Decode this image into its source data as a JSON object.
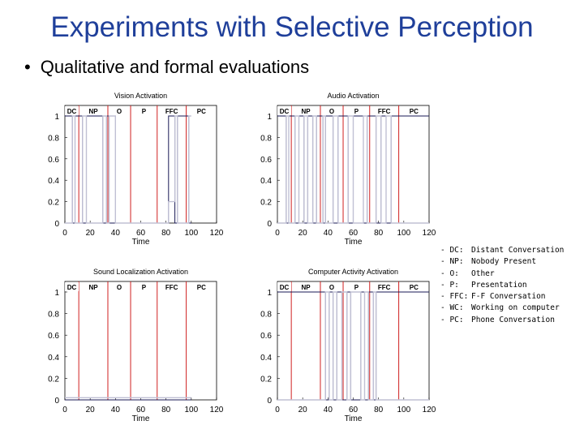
{
  "slide": {
    "title": "Experiments with Selective Perception",
    "bullet": "Qualitative and formal evaluations"
  },
  "legend": [
    {
      "key": "DC:",
      "value": "Distant Conversation"
    },
    {
      "key": "NP:",
      "value": "Nobody Present"
    },
    {
      "key": "O:",
      "value": "Other"
    },
    {
      "key": "P:",
      "value": "Presentation"
    },
    {
      "key": "FFC:",
      "value": "F-F Conversation"
    },
    {
      "key": "WC:",
      "value": "Working on computer"
    },
    {
      "key": "PC:",
      "value": "Phone Conversation"
    }
  ],
  "chart_data": [
    {
      "type": "line",
      "title": "Vision Activation",
      "xlabel": "Time",
      "ylabel": "",
      "xlim": [
        0,
        120
      ],
      "ylim": [
        0,
        1
      ],
      "xticks": [
        0,
        20,
        40,
        60,
        80,
        100,
        120
      ],
      "yticks": [
        0,
        0.2,
        0.4,
        0.6,
        0.8,
        1
      ],
      "segments": [
        {
          "label": "DC",
          "start": 0,
          "end": 11
        },
        {
          "label": "NP",
          "start": 11,
          "end": 34
        },
        {
          "label": "O",
          "start": 34,
          "end": 52
        },
        {
          "label": "P",
          "start": 52,
          "end": 73
        },
        {
          "label": "FFC",
          "start": 73,
          "end": 96
        },
        {
          "label": "PC",
          "start": 96,
          "end": 120
        }
      ],
      "boundaries": [
        11,
        34,
        52,
        73,
        96
      ],
      "series": [
        {
          "color": "#1a1a55",
          "points": [
            [
              0,
              1
            ],
            [
              6,
              1
            ],
            [
              6,
              0
            ],
            [
              8,
              0
            ],
            [
              8,
              1
            ],
            [
              14,
              1
            ],
            [
              14,
              0
            ],
            [
              17,
              0
            ],
            [
              17,
              1
            ],
            [
              30,
              1
            ],
            [
              30,
              0
            ],
            [
              33,
              0
            ],
            [
              33,
              1
            ],
            [
              35,
              1
            ],
            [
              35,
              0
            ],
            [
              82,
              0
            ],
            [
              82,
              1
            ],
            [
              87,
              1
            ],
            [
              87,
              0
            ],
            [
              89,
              0
            ],
            [
              89,
              1
            ],
            [
              98,
              1
            ],
            [
              98,
              0
            ],
            [
              100,
              0
            ]
          ]
        },
        {
          "color": "#c0c0d4",
          "points": [
            [
              0,
              0
            ],
            [
              6,
              0
            ],
            [
              6,
              1
            ],
            [
              8,
              1
            ],
            [
              8,
              0
            ],
            [
              14,
              0
            ],
            [
              14,
              1
            ],
            [
              17,
              1
            ],
            [
              17,
              0
            ],
            [
              30,
              0
            ],
            [
              30,
              1
            ],
            [
              33,
              1
            ],
            [
              33,
              0
            ],
            [
              35,
              0
            ],
            [
              35,
              1
            ],
            [
              40,
              1
            ],
            [
              40,
              0
            ],
            [
              82,
              0
            ],
            [
              82,
              0.2
            ],
            [
              87,
              0.2
            ],
            [
              87,
              1
            ],
            [
              89,
              1
            ],
            [
              89,
              0
            ],
            [
              98,
              0
            ],
            [
              98,
              1
            ],
            [
              100,
              1
            ]
          ]
        }
      ]
    },
    {
      "type": "line",
      "title": "Audio Activation",
      "xlabel": "Time",
      "ylabel": "",
      "xlim": [
        0,
        120
      ],
      "ylim": [
        0,
        1
      ],
      "xticks": [
        0,
        20,
        40,
        60,
        80,
        100,
        120
      ],
      "yticks": [
        0,
        0.2,
        0.4,
        0.6,
        0.8,
        1
      ],
      "segments": [
        {
          "label": "DC",
          "start": 0,
          "end": 11
        },
        {
          "label": "NP",
          "start": 11,
          "end": 34
        },
        {
          "label": "O",
          "start": 34,
          "end": 52
        },
        {
          "label": "P",
          "start": 52,
          "end": 73
        },
        {
          "label": "FFC",
          "start": 73,
          "end": 96
        },
        {
          "label": "PC",
          "start": 96,
          "end": 120
        }
      ],
      "boundaries": [
        11,
        34,
        52,
        73,
        96
      ],
      "series": [
        {
          "color": "#1a1a55",
          "points": [
            [
              0,
              1
            ],
            [
              7,
              1
            ],
            [
              7,
              0
            ],
            [
              9,
              0
            ],
            [
              9,
              1
            ],
            [
              14,
              1
            ],
            [
              14,
              0
            ],
            [
              17,
              0
            ],
            [
              17,
              1
            ],
            [
              21,
              1
            ],
            [
              21,
              0
            ],
            [
              24,
              0
            ],
            [
              24,
              1
            ],
            [
              28,
              1
            ],
            [
              28,
              0
            ],
            [
              31,
              0
            ],
            [
              31,
              1
            ],
            [
              36,
              1
            ],
            [
              36,
              0
            ],
            [
              38,
              0
            ],
            [
              38,
              1
            ],
            [
              44,
              1
            ],
            [
              44,
              0
            ],
            [
              48,
              0
            ],
            [
              48,
              1
            ],
            [
              56,
              1
            ],
            [
              56,
              0
            ],
            [
              60,
              0
            ],
            [
              60,
              1
            ],
            [
              68,
              1
            ],
            [
              68,
              0
            ],
            [
              71,
              0
            ],
            [
              71,
              1
            ],
            [
              78,
              1
            ],
            [
              78,
              0
            ],
            [
              82,
              0
            ],
            [
              82,
              1
            ],
            [
              86,
              1
            ],
            [
              86,
              0
            ],
            [
              90,
              0
            ],
            [
              90,
              1
            ],
            [
              120,
              1
            ]
          ]
        },
        {
          "color": "#c0c0d4",
          "points": [
            [
              0,
              0
            ],
            [
              7,
              0
            ],
            [
              7,
              1
            ],
            [
              9,
              1
            ],
            [
              9,
              0
            ],
            [
              14,
              0
            ],
            [
              14,
              1
            ],
            [
              17,
              1
            ],
            [
              17,
              0
            ],
            [
              21,
              0
            ],
            [
              21,
              1
            ],
            [
              24,
              1
            ],
            [
              24,
              0
            ],
            [
              28,
              0
            ],
            [
              28,
              1
            ],
            [
              31,
              1
            ],
            [
              31,
              0
            ],
            [
              36,
              0
            ],
            [
              36,
              1
            ],
            [
              38,
              1
            ],
            [
              38,
              0
            ],
            [
              44,
              0
            ],
            [
              44,
              1
            ],
            [
              48,
              1
            ],
            [
              48,
              0
            ],
            [
              56,
              0
            ],
            [
              56,
              1
            ],
            [
              60,
              1
            ],
            [
              60,
              0
            ],
            [
              68,
              0
            ],
            [
              68,
              1
            ],
            [
              71,
              1
            ],
            [
              71,
              0
            ],
            [
              78,
              0
            ],
            [
              78,
              1
            ],
            [
              82,
              1
            ],
            [
              82,
              0
            ],
            [
              86,
              0
            ],
            [
              86,
              1
            ],
            [
              90,
              1
            ],
            [
              90,
              0
            ],
            [
              120,
              0
            ]
          ]
        }
      ]
    },
    {
      "type": "line",
      "title": "Sound Localization Activation",
      "xlabel": "Time",
      "ylabel": "",
      "xlim": [
        0,
        120
      ],
      "ylim": [
        0,
        1
      ],
      "xticks": [
        0,
        20,
        40,
        60,
        80,
        100,
        120
      ],
      "yticks": [
        0,
        0.2,
        0.4,
        0.6,
        0.8,
        1
      ],
      "segments": [
        {
          "label": "DC",
          "start": 0,
          "end": 11
        },
        {
          "label": "NP",
          "start": 11,
          "end": 34
        },
        {
          "label": "O",
          "start": 34,
          "end": 52
        },
        {
          "label": "P",
          "start": 52,
          "end": 73
        },
        {
          "label": "FFC",
          "start": 73,
          "end": 96
        },
        {
          "label": "PC",
          "start": 96,
          "end": 120
        }
      ],
      "boundaries": [
        11,
        34,
        52,
        73,
        96
      ],
      "series": [
        {
          "color": "#1a1a55",
          "points": [
            [
              0,
              0
            ],
            [
              100,
              0
            ]
          ]
        },
        {
          "color": "#c0c0d4",
          "points": [
            [
              0,
              0.02
            ],
            [
              100,
              0.02
            ]
          ]
        }
      ]
    },
    {
      "type": "line",
      "title": "Computer Activity Activation",
      "xlabel": "Time",
      "ylabel": "",
      "xlim": [
        0,
        120
      ],
      "ylim": [
        0,
        1
      ],
      "xticks": [
        0,
        20,
        40,
        60,
        80,
        100,
        120
      ],
      "yticks": [
        0,
        0.2,
        0.4,
        0.6,
        0.8,
        1
      ],
      "segments": [
        {
          "label": "DC",
          "start": 0,
          "end": 11
        },
        {
          "label": "NP",
          "start": 11,
          "end": 34
        },
        {
          "label": "O",
          "start": 34,
          "end": 52
        },
        {
          "label": "P",
          "start": 52,
          "end": 73
        },
        {
          "label": "FFC",
          "start": 73,
          "end": 96
        },
        {
          "label": "PC",
          "start": 96,
          "end": 120
        }
      ],
      "boundaries": [
        11,
        34,
        52,
        73,
        96
      ],
      "series": [
        {
          "color": "#1a1a55",
          "points": [
            [
              0,
              1
            ],
            [
              38,
              1
            ],
            [
              38,
              0
            ],
            [
              41,
              0
            ],
            [
              41,
              1
            ],
            [
              44,
              1
            ],
            [
              44,
              0
            ],
            [
              47,
              0
            ],
            [
              47,
              1
            ],
            [
              51,
              1
            ],
            [
              51,
              0
            ],
            [
              55,
              0
            ],
            [
              55,
              1
            ],
            [
              58,
              1
            ],
            [
              58,
              0
            ],
            [
              66,
              0
            ],
            [
              66,
              1
            ],
            [
              69,
              1
            ],
            [
              69,
              0
            ],
            [
              72,
              0
            ],
            [
              72,
              1
            ],
            [
              76,
              1
            ],
            [
              76,
              0
            ],
            [
              78,
              0
            ],
            [
              78,
              1
            ],
            [
              120,
              1
            ]
          ]
        },
        {
          "color": "#c0c0d4",
          "points": [
            [
              0,
              0
            ],
            [
              38,
              0
            ],
            [
              38,
              1
            ],
            [
              41,
              1
            ],
            [
              41,
              0
            ],
            [
              44,
              0
            ],
            [
              44,
              1
            ],
            [
              47,
              1
            ],
            [
              47,
              0
            ],
            [
              51,
              0
            ],
            [
              51,
              1
            ],
            [
              55,
              1
            ],
            [
              55,
              0
            ],
            [
              58,
              0
            ],
            [
              58,
              1
            ],
            [
              66,
              1
            ],
            [
              66,
              0
            ],
            [
              69,
              0
            ],
            [
              69,
              1
            ],
            [
              72,
              1
            ],
            [
              72,
              0
            ],
            [
              76,
              0
            ],
            [
              76,
              1
            ],
            [
              78,
              1
            ],
            [
              78,
              0
            ],
            [
              120,
              0
            ]
          ]
        }
      ]
    }
  ]
}
